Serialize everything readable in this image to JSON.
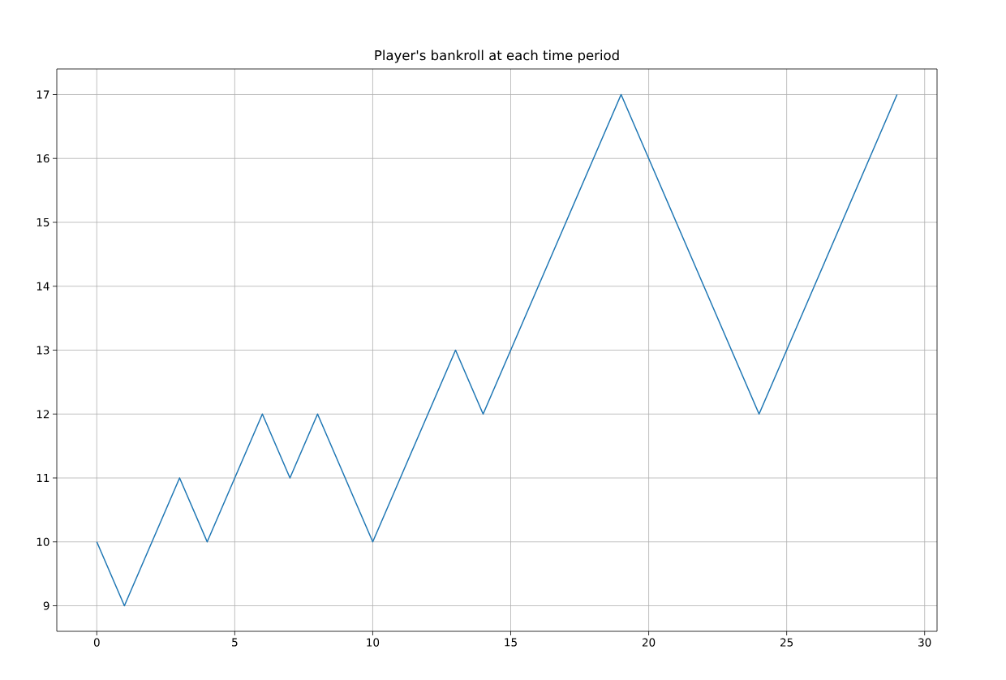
{
  "chart_data": {
    "type": "line",
    "title": "Player's bankroll at each time period",
    "x": [
      0,
      1,
      2,
      3,
      4,
      5,
      6,
      7,
      8,
      9,
      10,
      11,
      12,
      13,
      14,
      15,
      16,
      17,
      18,
      19,
      20,
      21,
      22,
      23,
      24,
      25,
      26,
      27,
      28,
      29
    ],
    "series": [
      {
        "color": "#1f77b4",
        "values": [
          10,
          9,
          10,
          11,
          10,
          11,
          12,
          11,
          12,
          11,
          10,
          11,
          12,
          13,
          12,
          13,
          14,
          15,
          16,
          17,
          16,
          15,
          14,
          13,
          12,
          13,
          14,
          15,
          16,
          17
        ]
      }
    ],
    "xlim": [
      -1.45,
      30.45
    ],
    "ylim": [
      8.6,
      17.4
    ],
    "xticks": [
      0,
      5,
      10,
      15,
      20,
      25,
      30
    ],
    "yticks": [
      9,
      10,
      11,
      12,
      13,
      14,
      15,
      16,
      17
    ],
    "grid": true,
    "marker": "none",
    "line_style": "solid"
  }
}
